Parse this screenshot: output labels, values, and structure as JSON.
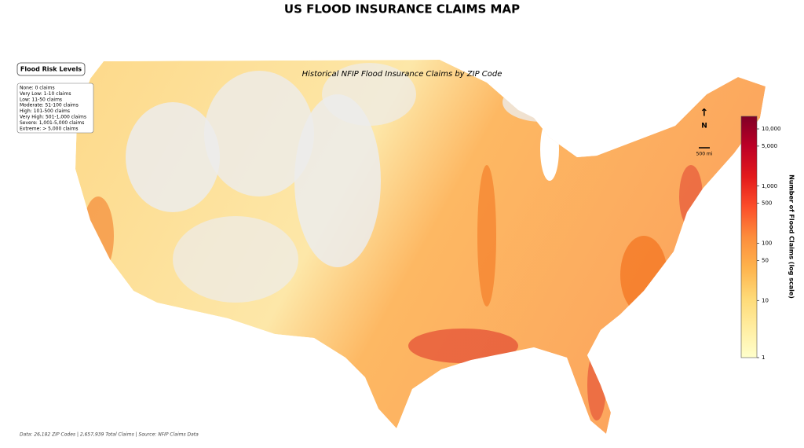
{
  "title": "US FLOOD INSURANCE CLAIMS MAP",
  "subtitle": "Historical NFIP Flood Insurance Claims by ZIP Code",
  "legend": {
    "title": "Flood Risk Levels",
    "items": [
      "None: 0 claims",
      "Very Low: 1-10 claims",
      "Low: 11-50 claims",
      "Moderate: 51-100 claims",
      "High: 101-500 claims",
      "Very High: 501-1,000 claims",
      "Severe: 1,001-5,000 claims",
      "Extreme: > 5,000 claims"
    ]
  },
  "colorbar": {
    "label": "Number of Flood Claims (log scale)",
    "log_scale": true,
    "lim": [
      1,
      16600
    ],
    "ticks": [
      1,
      10,
      50,
      100,
      500,
      {
        "value": 1000,
        "label": "1,000"
      },
      {
        "value": 5000,
        "label": "5,000"
      },
      {
        "value": 10000,
        "label": "10,000"
      }
    ],
    "colors": [
      "#ffffcc",
      "#ffeda0",
      "#fed976",
      "#feb24c",
      "#fd8d3c",
      "#fc4e2a",
      "#e31a1c",
      "#bd0026",
      "#800026"
    ]
  },
  "north_label": "N",
  "scale_label": "500 mi",
  "footer": "Data: 26,182 ZIP Codes | 2,657,939 Total Claims | Source: NFIP Claims Data"
}
